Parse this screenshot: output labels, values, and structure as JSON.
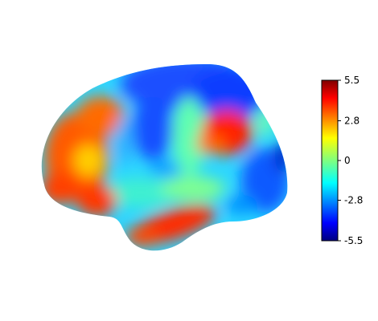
{
  "figure": {
    "type": "brain-surface-map",
    "view": "lateral-left-hemisphere",
    "colormap": "jet",
    "background": "#ffffff"
  },
  "colorbar": {
    "range": [
      -5.5,
      5.5
    ],
    "ticks": [
      "5.5",
      "2.8",
      "0",
      "-2.8",
      "-5.5"
    ],
    "colors": [
      "#00007f",
      "#0000ff",
      "#007fff",
      "#00ffff",
      "#7fff7f",
      "#ffff00",
      "#ff7f00",
      "#ff0000",
      "#7f0000"
    ]
  },
  "regions": [
    {
      "name": "frontal-pole-hot",
      "level": 4.5
    },
    {
      "name": "inferior-frontal-hot",
      "level": 4.0
    },
    {
      "name": "parietal-hot",
      "level": 4.8
    },
    {
      "name": "temporal-hot",
      "level": 4.6
    },
    {
      "name": "superior-frontal-cold",
      "level": -4.5
    },
    {
      "name": "occipital-cold",
      "level": -4.0
    },
    {
      "name": "central-mixed",
      "level": -1.5
    }
  ]
}
